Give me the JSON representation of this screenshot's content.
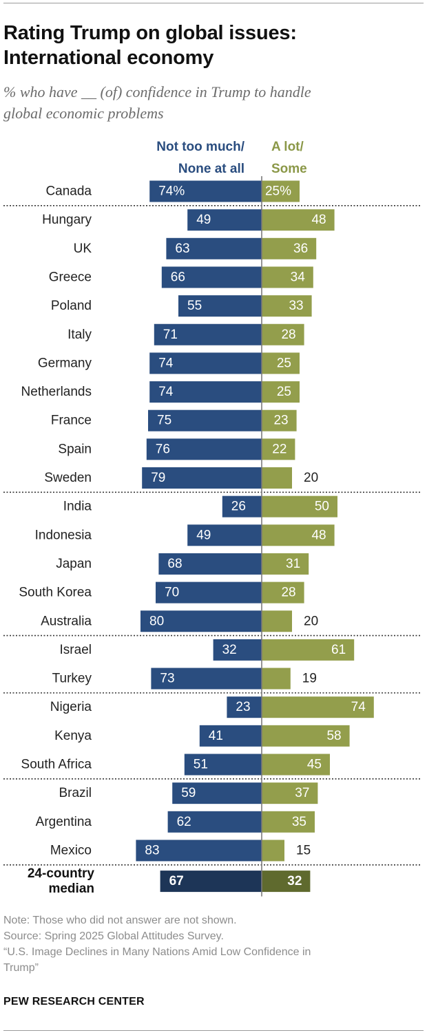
{
  "header": {
    "title_line1": "Rating Trump on global issues:",
    "title_line2": "International economy",
    "subtitle_line1": "% who have __ (of) confidence in Trump to handle",
    "subtitle_line2": "global economic problems"
  },
  "legend": {
    "left_line1": "Not too much/",
    "left_line2": "None at all",
    "right_line1": "A lot/",
    "right_line2": "Some"
  },
  "colors": {
    "negative": "#2a4d7f",
    "positive": "#939e4c",
    "negative_median": "#1d3557",
    "positive_median": "#5f6a2e",
    "separator": "#333333",
    "axis": "#7a7a7a"
  },
  "chart_data": {
    "type": "bar",
    "orientation": "diverging-horizontal",
    "series": [
      {
        "name": "Not too much/None at all"
      },
      {
        "name": "A lot/Some"
      }
    ],
    "groups": [
      {
        "rows": [
          {
            "country": "Canada",
            "negative": 74,
            "positive": 25,
            "negative_label": "74%",
            "positive_label": "25%"
          }
        ]
      },
      {
        "rows": [
          {
            "country": "Hungary",
            "negative": 49,
            "positive": 48,
            "negative_label": "49",
            "positive_label": "48"
          },
          {
            "country": "UK",
            "negative": 63,
            "positive": 36,
            "negative_label": "63",
            "positive_label": "36"
          },
          {
            "country": "Greece",
            "negative": 66,
            "positive": 34,
            "negative_label": "66",
            "positive_label": "34"
          },
          {
            "country": "Poland",
            "negative": 55,
            "positive": 33,
            "negative_label": "55",
            "positive_label": "33"
          },
          {
            "country": "Italy",
            "negative": 71,
            "positive": 28,
            "negative_label": "71",
            "positive_label": "28"
          },
          {
            "country": "Germany",
            "negative": 74,
            "positive": 25,
            "negative_label": "74",
            "positive_label": "25"
          },
          {
            "country": "Netherlands",
            "negative": 74,
            "positive": 25,
            "negative_label": "74",
            "positive_label": "25"
          },
          {
            "country": "France",
            "negative": 75,
            "positive": 23,
            "negative_label": "75",
            "positive_label": "23"
          },
          {
            "country": "Spain",
            "negative": 76,
            "positive": 22,
            "negative_label": "76",
            "positive_label": "22"
          },
          {
            "country": "Sweden",
            "negative": 79,
            "positive": 20,
            "negative_label": "79",
            "positive_label": "20"
          }
        ]
      },
      {
        "rows": [
          {
            "country": "India",
            "negative": 26,
            "positive": 50,
            "negative_label": "26",
            "positive_label": "50"
          },
          {
            "country": "Indonesia",
            "negative": 49,
            "positive": 48,
            "negative_label": "49",
            "positive_label": "48"
          },
          {
            "country": "Japan",
            "negative": 68,
            "positive": 31,
            "negative_label": "68",
            "positive_label": "31"
          },
          {
            "country": "South Korea",
            "negative": 70,
            "positive": 28,
            "negative_label": "70",
            "positive_label": "28"
          },
          {
            "country": "Australia",
            "negative": 80,
            "positive": 20,
            "negative_label": "80",
            "positive_label": "20"
          }
        ]
      },
      {
        "rows": [
          {
            "country": "Israel",
            "negative": 32,
            "positive": 61,
            "negative_label": "32",
            "positive_label": "61"
          },
          {
            "country": "Turkey",
            "negative": 73,
            "positive": 19,
            "negative_label": "73",
            "positive_label": "19"
          }
        ]
      },
      {
        "rows": [
          {
            "country": "Nigeria",
            "negative": 23,
            "positive": 74,
            "negative_label": "23",
            "positive_label": "74"
          },
          {
            "country": "Kenya",
            "negative": 41,
            "positive": 58,
            "negative_label": "41",
            "positive_label": "58"
          },
          {
            "country": "South Africa",
            "negative": 51,
            "positive": 45,
            "negative_label": "51",
            "positive_label": "45"
          }
        ]
      },
      {
        "rows": [
          {
            "country": "Brazil",
            "negative": 59,
            "positive": 37,
            "negative_label": "59",
            "positive_label": "37"
          },
          {
            "country": "Argentina",
            "negative": 62,
            "positive": 35,
            "negative_label": "62",
            "positive_label": "35"
          },
          {
            "country": "Mexico",
            "negative": 83,
            "positive": 15,
            "negative_label": "83",
            "positive_label": "15"
          }
        ]
      }
    ],
    "median": {
      "label_line1": "24-country",
      "label_line2": "median",
      "negative": 67,
      "positive": 32,
      "negative_label": "67",
      "positive_label": "32"
    }
  },
  "notes": {
    "note": "Note: Those who did not answer are not shown.",
    "source": "Source: Spring 2025 Global Attitudes Survey.",
    "report_line1": "“U.S. Image Declines in Many Nations Amid Low Confidence in",
    "report_line2": "Trump”"
  },
  "brand": "PEW RESEARCH CENTER"
}
